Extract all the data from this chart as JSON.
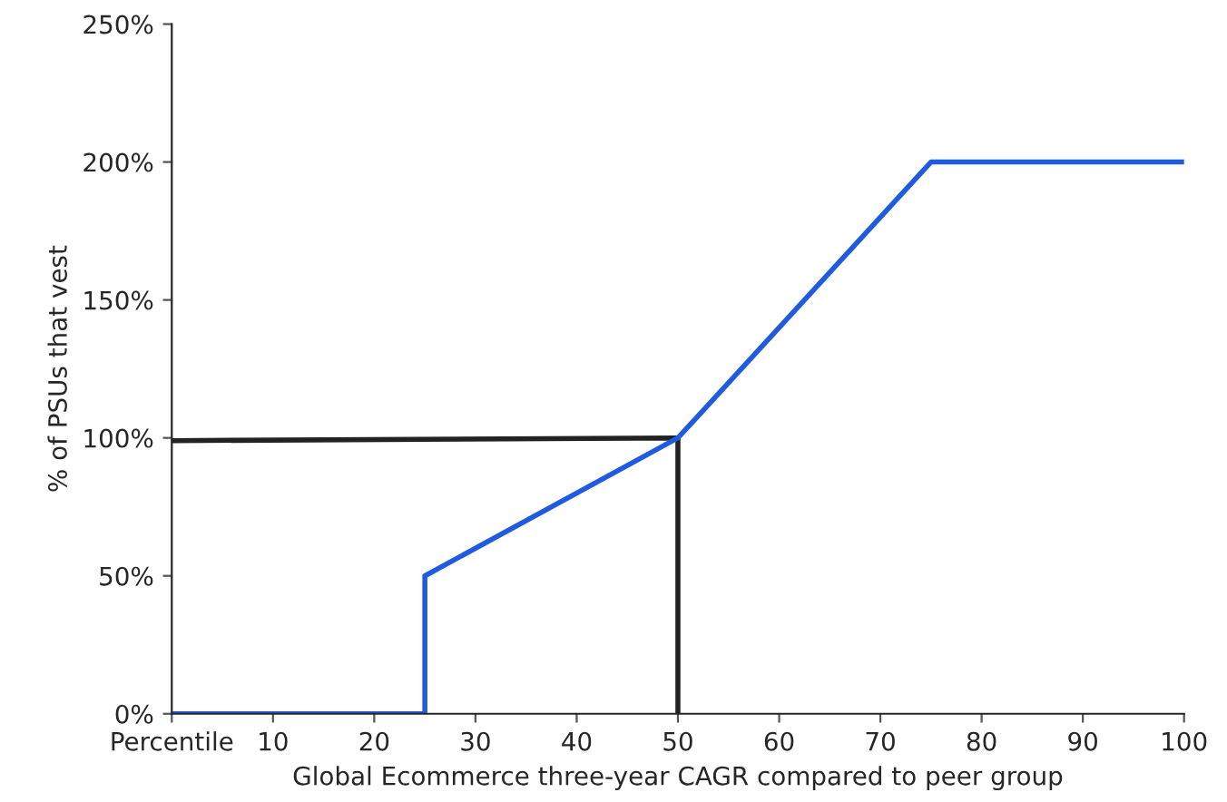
{
  "chart_data": {
    "type": "line",
    "xlabel": "Global Ecommerce three-year CAGR compared to peer group",
    "ylabel": "% of PSUs that vest",
    "series": [
      {
        "color": "#222222",
        "x": [
          0,
          50,
          50
        ],
        "values": [
          99,
          100,
          0
        ]
      },
      {
        "color": "#1f5be0",
        "x": [
          0,
          25,
          25,
          50,
          75,
          100
        ],
        "values": [
          0,
          0,
          50,
          100,
          200,
          200
        ]
      }
    ],
    "xlim": [
      0,
      100
    ],
    "ylim": [
      0,
      250
    ],
    "xticks": [
      {
        "value": 0,
        "label": "Percentile"
      },
      10,
      20,
      30,
      40,
      50,
      60,
      70,
      80,
      90,
      100
    ],
    "yticks": [
      {
        "value": 0,
        "label": "0%"
      },
      {
        "value": 50,
        "label": "50%"
      },
      {
        "value": 100,
        "label": "100%"
      },
      {
        "value": 150,
        "label": "150%"
      },
      {
        "value": 200,
        "label": "200%"
      },
      {
        "value": 250,
        "label": "250%"
      }
    ],
    "grid": false
  }
}
